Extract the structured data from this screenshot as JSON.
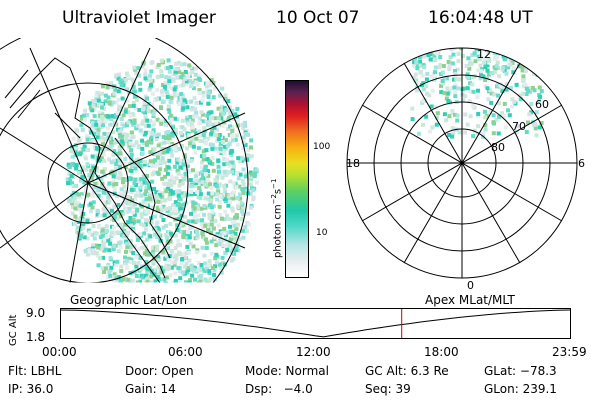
{
  "header": {
    "title": "Ultraviolet Imager",
    "date": "10 Oct 07",
    "time": "16:04:48 UT"
  },
  "colorbar": {
    "unit_label": "photon cm",
    "unit_exp1": "−2",
    "unit_mid": "s",
    "unit_exp2": "−1",
    "ticks": [
      "100",
      "10"
    ]
  },
  "polar_plot": {
    "ring_labels": [
      "60",
      "70",
      "80"
    ],
    "hour_labels": {
      "top": "12",
      "bottom": "0",
      "left": "18",
      "right": "6"
    }
  },
  "panel_labels": {
    "left": "Geographic Lat/Lon",
    "right": "Apex MLat/MLT"
  },
  "altitude_plot": {
    "ylabel": "GC Alt",
    "yticks": [
      "9.0",
      "1.8"
    ],
    "xticks": [
      "00:00",
      "06:00",
      "12:00",
      "18:00",
      "23:59"
    ],
    "current_time_marker": "16:04:48",
    "colors": {
      "curve": "#000000",
      "marker": "#cc0000"
    }
  },
  "info": {
    "row1": [
      "Flt: LBHL",
      "Door: Open",
      "Mode: Normal",
      "GC Alt: 6.3 Re",
      "GLat: −78.3"
    ],
    "row2": [
      "IP: 36.0",
      "Gain: 14",
      "Dsp:   −4.0",
      "Seq: 39",
      "GLon: 239.1"
    ]
  }
}
